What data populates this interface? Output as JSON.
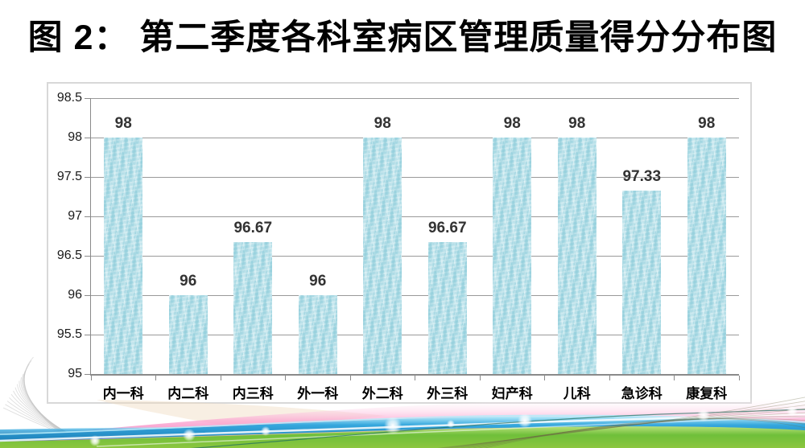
{
  "title": "图 2： 第二季度各科室病区管理质量得分分布图",
  "chart_data": {
    "type": "bar",
    "title": "图 2： 第二季度各科室病区管理质量得分分布图",
    "categories": [
      "内一科",
      "内二科",
      "内三科",
      "外一科",
      "外二科",
      "外三科",
      "妇产科",
      "儿科",
      "急诊科",
      "康复科"
    ],
    "values": [
      98,
      96,
      96.67,
      96,
      98,
      96.67,
      98,
      98,
      97.33,
      98
    ],
    "data_labels": [
      "98",
      "96",
      "96.67",
      "96",
      "98",
      "96.67",
      "98",
      "98",
      "97.33",
      "98"
    ],
    "xlabel": "",
    "ylabel": "",
    "ylim": [
      95,
      98.5
    ],
    "ytick_step": 0.5,
    "ytick_labels": [
      "95",
      "95.5",
      "96",
      "96.5",
      "97",
      "97.5",
      "98",
      "98.5"
    ],
    "grid": true,
    "legend": "none"
  },
  "colors": {
    "title_color": "#000000",
    "panel_border": "#d8d8d8",
    "gridline": "#9a9a9a",
    "axis": "#8a8a8a",
    "tick_label": "#1a1a1a",
    "data_label": "#333333",
    "bar_fill": "#a6d8e3",
    "ribbon_pink": "#f45ca8",
    "ribbon_blue": "#35a7dd",
    "ribbon_green": "#6fbf3a",
    "ribbon_olive": "#c3b67c"
  }
}
